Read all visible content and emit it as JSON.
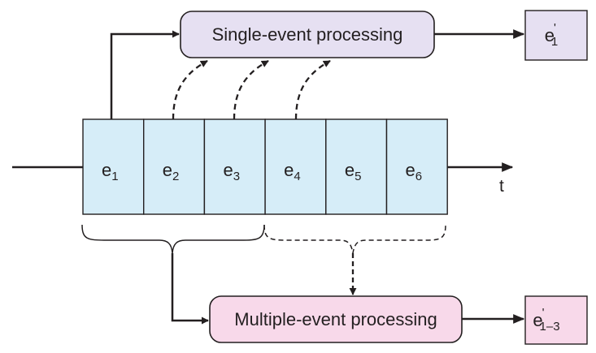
{
  "diagram": {
    "single_box": {
      "label": "Single-event processing",
      "fill": "#e6e0f2"
    },
    "multi_box": {
      "label": "Multiple-event processing",
      "fill": "#f8d9ea"
    },
    "single_output": {
      "base": "e",
      "prime": "'",
      "sub": "1",
      "fill": "#e6e0f2"
    },
    "multi_output": {
      "base": "e",
      "prime": "'",
      "sub": "1–3",
      "fill": "#f8d9ea"
    },
    "events": [
      {
        "base": "e",
        "sub": "1"
      },
      {
        "base": "e",
        "sub": "2"
      },
      {
        "base": "e",
        "sub": "3"
      },
      {
        "base": "e",
        "sub": "4"
      },
      {
        "base": "e",
        "sub": "5"
      },
      {
        "base": "e",
        "sub": "6"
      }
    ],
    "event_fill": "#d6edf8",
    "stroke": "#231f20",
    "axis_label": "t"
  }
}
